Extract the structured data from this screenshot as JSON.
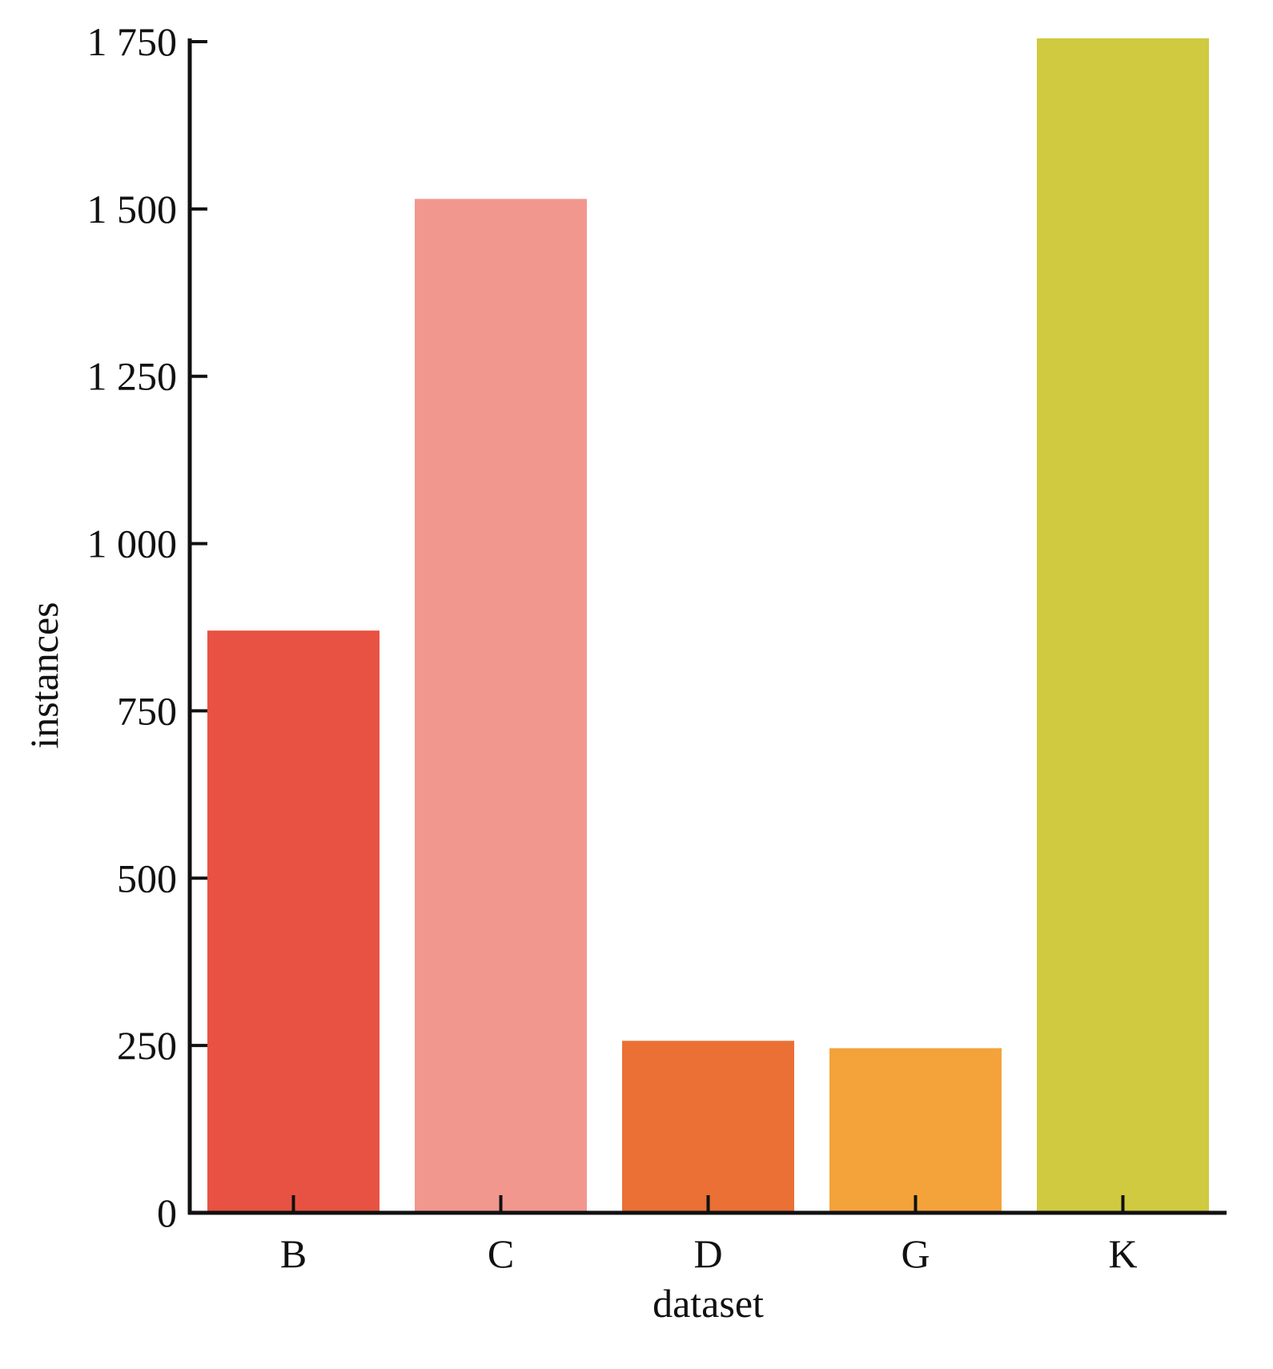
{
  "chart_data": {
    "type": "bar",
    "categories": [
      "B",
      "C",
      "D",
      "G",
      "K"
    ],
    "values": [
      870,
      1515,
      257,
      246,
      1755
    ],
    "colors": [
      "#e85242",
      "#f1978e",
      "#ea7035",
      "#f4a23a",
      "#cfca40"
    ],
    "xlabel": "dataset",
    "ylabel": "instances",
    "ylim": [
      0,
      1750
    ],
    "yticks": [
      0,
      250,
      500,
      750,
      1000,
      1250,
      1500,
      1750
    ],
    "ytick_labels": [
      "0",
      "250",
      "500",
      "750",
      "1 000",
      "1 250",
      "1 500",
      "1 750"
    ],
    "grid": false,
    "legend": false
  }
}
